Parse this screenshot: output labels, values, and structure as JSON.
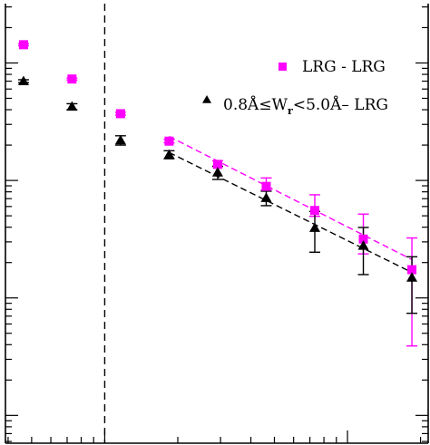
{
  "chart_data": {
    "type": "scatter",
    "title": "",
    "xlabel": "",
    "ylabel": "",
    "xscale": "log",
    "yscale": "log",
    "xlim": [
      0.039,
      2.15
    ],
    "ylim": [
      0.00058,
      3.2
    ],
    "grid": false,
    "legend_position": "top-right",
    "vertical_reference_line": {
      "x": 0.1,
      "style": "dashed",
      "color": "#000000"
    },
    "series": [
      {
        "name": "LRG - LRG",
        "marker": "square",
        "color": "#ff00ff",
        "x": [
          0.0463,
          0.0733,
          0.1162,
          0.1842,
          0.2919,
          0.4627,
          0.7334,
          1.1624,
          1.8423
        ],
        "y": [
          1.43,
          0.73,
          0.37,
          0.216,
          0.137,
          0.089,
          0.0555,
          0.0317,
          0.0174
        ],
        "yerr_low": [
          0.03,
          0.015,
          0.01,
          0.007,
          0.006,
          0.006,
          0.006,
          0.008,
          0.0135
        ],
        "yerr_high": [
          0.03,
          0.015,
          0.01,
          0.007,
          0.01,
          0.016,
          0.02,
          0.02,
          0.015
        ],
        "fit": {
          "x": [
            0.1842,
            1.8423
          ],
          "y": [
            0.237,
            0.0212
          ],
          "style": "dashed"
        }
      },
      {
        "name": "0.8Å≤W_r<5.0Å– LRG",
        "marker": "triangle",
        "color": "#000000",
        "x": [
          0.0463,
          0.0733,
          0.1162,
          0.1842,
          0.2919,
          0.4627,
          0.7334,
          1.1624,
          1.8423
        ],
        "y": [
          0.7,
          0.425,
          0.22,
          0.166,
          0.117,
          0.071,
          0.0395,
          0.0278,
          0.0149
        ],
        "yerr_low": [
          0.02,
          0.025,
          0.02,
          0.013,
          0.015,
          0.01,
          0.015,
          0.012,
          0.0075
        ],
        "yerr_high": [
          0.02,
          0.025,
          0.02,
          0.013,
          0.015,
          0.01,
          0.015,
          0.012,
          0.0075
        ],
        "fit": {
          "x": [
            0.1842,
            1.8423
          ],
          "y": [
            0.173,
            0.0165
          ],
          "style": "dashed"
        }
      }
    ],
    "legend": [
      {
        "marker": "square",
        "color": "#ff00ff",
        "label": "LRG - LRG"
      },
      {
        "marker": "triangle",
        "color": "#000000",
        "label_main": "0.8Å≤W",
        "label_sub": "r",
        "label_rest": "<5.0Å– LRG"
      }
    ]
  }
}
